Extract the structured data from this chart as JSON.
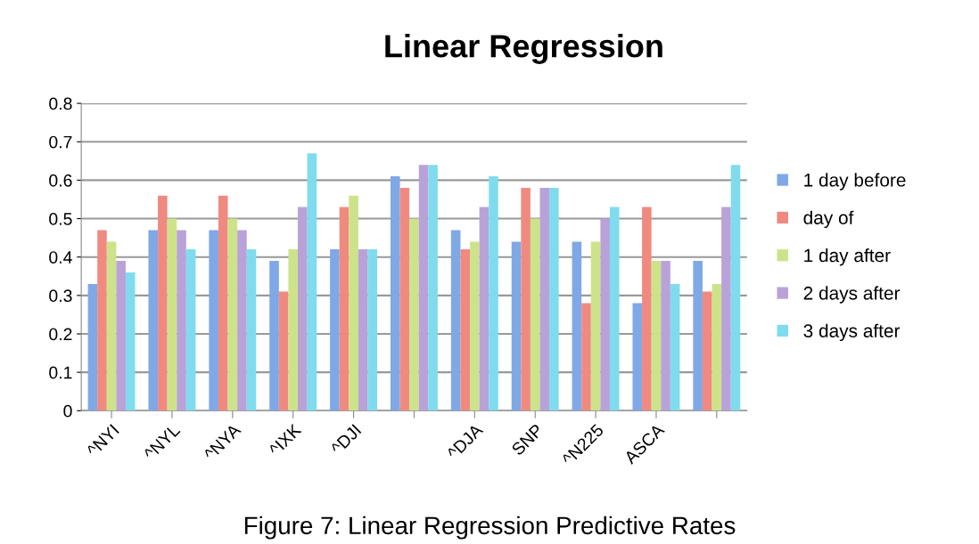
{
  "chart_data": {
    "type": "bar",
    "title": "Linear Regression",
    "categories": [
      "^NYI",
      "^NYL",
      "^NYA",
      "^IXK",
      "^DJI",
      null,
      "^DJA",
      "SNP",
      "^N225",
      "ASCA",
      null
    ],
    "series": [
      {
        "name": "1 day before",
        "color": "#7fa8e6",
        "values": [
          0.33,
          0.47,
          0.47,
          0.39,
          0.42,
          0.61,
          0.47,
          0.44,
          0.44,
          0.28,
          0.39
        ]
      },
      {
        "name": "day of",
        "color": "#f08a80",
        "values": [
          0.47,
          0.56,
          0.56,
          0.31,
          0.53,
          0.58,
          0.42,
          0.58,
          0.28,
          0.53,
          0.31
        ]
      },
      {
        "name": "1 day after",
        "color": "#cde38a",
        "values": [
          0.44,
          0.5,
          0.5,
          0.42,
          0.56,
          0.5,
          0.44,
          0.5,
          0.44,
          0.39,
          0.33
        ]
      },
      {
        "name": "2 days after",
        "color": "#b9a2d8",
        "values": [
          0.39,
          0.47,
          0.47,
          0.53,
          0.42,
          0.64,
          0.53,
          0.58,
          0.5,
          0.39,
          0.53
        ]
      },
      {
        "name": "3 days after",
        "color": "#7fdcee",
        "values": [
          0.36,
          0.42,
          0.42,
          0.67,
          0.42,
          0.64,
          0.61,
          0.58,
          0.53,
          0.33,
          0.64
        ]
      }
    ],
    "ylim": [
      0,
      0.8
    ],
    "yticks": [
      0,
      0.1,
      0.2,
      0.3,
      0.4,
      0.5,
      0.6,
      0.7,
      0.8
    ],
    "grid": "y",
    "legend": "right",
    "annotations": [
      "Figure 7: Linear Regression Predictive Rates"
    ]
  }
}
